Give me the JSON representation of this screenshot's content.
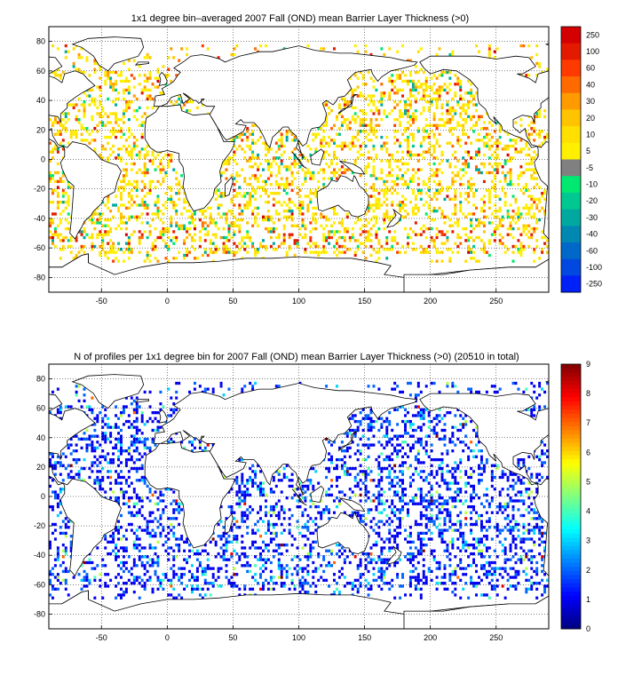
{
  "chart_data": [
    {
      "type": "heatmap",
      "title": "1x1 degree bin–averaged 2007 Fall (OND) mean Barrier Layer Thickness (>0)",
      "xlabel": "",
      "ylabel": "",
      "xlim": [
        -90,
        290
      ],
      "ylim": [
        -90,
        90
      ],
      "x_ticks": [
        -50,
        0,
        50,
        100,
        150,
        200,
        250
      ],
      "y_ticks": [
        80,
        60,
        40,
        20,
        0,
        -20,
        -40,
        -60,
        -80
      ],
      "grid": true,
      "colorbar": {
        "placement": "right",
        "labels": [
          "250",
          "100",
          "60",
          "40",
          "30",
          "20",
          "10",
          "5",
          "-5",
          "-10",
          "-20",
          "-30",
          "-40",
          "-60",
          "-100",
          "-250"
        ],
        "colors": [
          "#d40000",
          "#e41a00",
          "#ff3a00",
          "#ff6a00",
          "#ff9a00",
          "#ffc400",
          "#ffe000",
          "#fff000",
          "#808080",
          "#00e870",
          "#00c890",
          "#00a8a0",
          "#0088b0",
          "#0068c8",
          "#0048e0",
          "#0020f8"
        ]
      },
      "data_summary": "Sparse colored 1x1 degree bins; values mostly 5–20 m (yellow/orange) in tropical Pacific and North Atlantic, gray (−5 to 5) widespread, strong values (>60 m, red) near 45–60°N Atlantic/Pacific and ~55°S south of Australia/New Zealand."
    },
    {
      "type": "heatmap",
      "title": "N of profiles per 1x1 degree bin for 2007 Fall (OND) mean Barrier Layer Thickness (>0) (20510 in total)",
      "xlabel": "",
      "ylabel": "",
      "xlim": [
        -90,
        290
      ],
      "ylim": [
        -90,
        90
      ],
      "x_ticks": [
        -50,
        0,
        50,
        100,
        150,
        200,
        250
      ],
      "y_ticks": [
        80,
        60,
        40,
        20,
        0,
        -20,
        -40,
        -60,
        -80
      ],
      "grid": true,
      "colorbar": {
        "placement": "right",
        "range": [
          0,
          9
        ],
        "labels": [
          "9",
          "8",
          "7",
          "6",
          "5",
          "4",
          "3",
          "2",
          "1",
          "0"
        ],
        "colormap": "jet"
      },
      "data_summary": "Counts of Argo profiles per bin; mostly 1–2 (blue), scattered 3–5 (cyan/green/yellow), occasional 7–9 (red) in the western North Pacific."
    }
  ]
}
